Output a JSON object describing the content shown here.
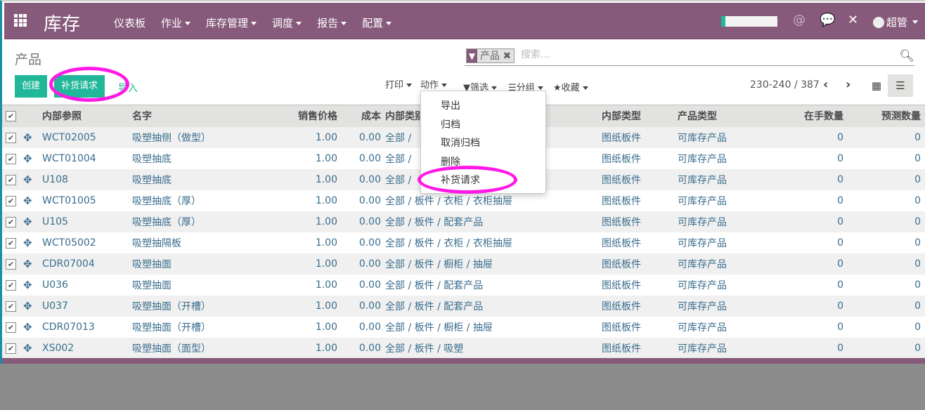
{
  "nav": {
    "brand": "库存",
    "menu": [
      "仪表板",
      "作业",
      "库存管理",
      "调度",
      "报告",
      "配置"
    ],
    "menu_dropdown": [
      false,
      true,
      true,
      true,
      true,
      true
    ],
    "user": "超管"
  },
  "page": {
    "title": "产品"
  },
  "search": {
    "facet": "产品",
    "placeholder": "搜索..."
  },
  "buttons": {
    "create": "创建",
    "replenish": "补货请求",
    "import": "导入"
  },
  "toolbar": {
    "print": "打印",
    "action": "动作",
    "filter": "筛选",
    "group": "分组",
    "favorites": "收藏"
  },
  "pager": {
    "text": "230-240 / 387"
  },
  "action_menu": [
    "导出",
    "归档",
    "取消归档",
    "删除",
    "补货请求"
  ],
  "table": {
    "headers": [
      "内部参照",
      "名字",
      "销售价格",
      "成本",
      "内部类别",
      "内部类型",
      "产品类型",
      "在手数量",
      "预测数量"
    ],
    "rows": [
      [
        "WCT02005",
        "吸塑抽侧（做型）",
        "1.00",
        "0.00",
        "全部 /",
        "图纸板件",
        "可库存产品",
        "0",
        "0"
      ],
      [
        "WCT01004",
        "吸塑抽底",
        "1.00",
        "0.00",
        "全部 /",
        "图纸板件",
        "可库存产品",
        "0",
        "0"
      ],
      [
        "U108",
        "吸塑抽底",
        "1.00",
        "0.00",
        "全部 /",
        "图纸板件",
        "可库存产品",
        "0",
        "0"
      ],
      [
        "WCT01005",
        "吸塑抽底（厚）",
        "1.00",
        "0.00",
        "全部 / 板件 / 衣柜 / 衣柜抽屉",
        "图纸板件",
        "可库存产品",
        "0",
        "0"
      ],
      [
        "U105",
        "吸塑抽底（厚）",
        "1.00",
        "0.00",
        "全部 / 板件 / 配套产品",
        "图纸板件",
        "可库存产品",
        "0",
        "0"
      ],
      [
        "WCT05002",
        "吸塑抽隔板",
        "1.00",
        "0.00",
        "全部 / 板件 / 衣柜 / 衣柜抽屉",
        "图纸板件",
        "可库存产品",
        "0",
        "0"
      ],
      [
        "CDR07004",
        "吸塑抽面",
        "1.00",
        "0.00",
        "全部 / 板件 / 橱柜 / 抽屉",
        "图纸板件",
        "可库存产品",
        "0",
        "0"
      ],
      [
        "U036",
        "吸塑抽面",
        "1.00",
        "0.00",
        "全部 / 板件 / 配套产品",
        "图纸板件",
        "可库存产品",
        "0",
        "0"
      ],
      [
        "U037",
        "吸塑抽面（开槽）",
        "1.00",
        "0.00",
        "全部 / 板件 / 配套产品",
        "图纸板件",
        "可库存产品",
        "0",
        "0"
      ],
      [
        "CDR07013",
        "吸塑抽面（开槽）",
        "1.00",
        "0.00",
        "全部 / 板件 / 橱柜 / 抽屉",
        "图纸板件",
        "可库存产品",
        "0",
        "0"
      ],
      [
        "XS002",
        "吸塑抽面（面型）",
        "1.00",
        "0.00",
        "全部 / 板件 / 吸塑",
        "图纸板件",
        "可库存产品",
        "0",
        "0"
      ]
    ]
  },
  "colors": {
    "brand": "#875a7b",
    "accent": "#21b799",
    "highlight": "#ff19e6"
  }
}
